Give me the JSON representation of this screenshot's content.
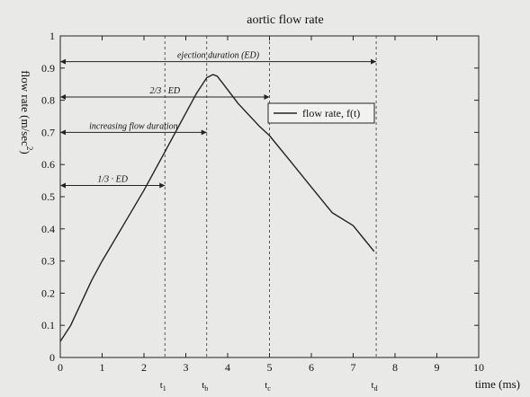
{
  "chart_data": {
    "type": "line",
    "title": "aortic flow rate",
    "xlabel": "time (ms)",
    "ylabel": "flow rate (m/sec",
    "ylabel_superscript": "2",
    "ylabel_close": ")",
    "xlim": [
      0,
      10
    ],
    "ylim": [
      0,
      1
    ],
    "x_ticks": [
      0,
      1,
      2,
      3,
      4,
      5,
      6,
      7,
      8,
      9,
      10
    ],
    "y_ticks": [
      0,
      0.1,
      0.2,
      0.3,
      0.4,
      0.5,
      0.6,
      0.7,
      0.8,
      0.9,
      1
    ],
    "x_tick_labels": [
      "0",
      "1",
      "2",
      "3",
      "4",
      "5",
      "6",
      "7",
      "8",
      "9",
      "10"
    ],
    "y_tick_labels": [
      "0",
      "0.1",
      "0.2",
      "0.3",
      "0.4",
      "0.5",
      "0.6",
      "0.7",
      "0.8",
      "0.9",
      "1"
    ],
    "grid": false,
    "legend_position": "right, inside plot",
    "series": [
      {
        "name": "flow rate, f(t)",
        "color": "#222222",
        "x": [
          0,
          0.25,
          0.5,
          0.75,
          1.0,
          1.5,
          2.0,
          2.5,
          3.0,
          3.25,
          3.5,
          3.65,
          3.75,
          3.9,
          4.25,
          4.75,
          5.0,
          5.5,
          6.0,
          6.5,
          7.0,
          7.25,
          7.5
        ],
        "y": [
          0.05,
          0.1,
          0.17,
          0.24,
          0.3,
          0.41,
          0.52,
          0.64,
          0.76,
          0.82,
          0.87,
          0.88,
          0.875,
          0.85,
          0.79,
          0.72,
          0.69,
          0.61,
          0.53,
          0.45,
          0.41,
          0.37,
          0.33
        ]
      }
    ],
    "vertical_markers": [
      {
        "x": 2.5,
        "label": "t",
        "sub": "1"
      },
      {
        "x": 3.5,
        "label": "t",
        "sub": "b"
      },
      {
        "x": 5.0,
        "label": "t",
        "sub": "c"
      },
      {
        "x": 7.55,
        "label": "t",
        "sub": "d"
      }
    ],
    "annotations": [
      {
        "text": "ejection duration (ED)",
        "y": 0.92,
        "x_start": 0,
        "x_end": 7.55
      },
      {
        "text": "2/3 · ED",
        "y": 0.81,
        "x_start": 0,
        "x_end": 5.0
      },
      {
        "text": "increasing flow duration",
        "y": 0.7,
        "x_start": 0,
        "x_end": 3.5
      },
      {
        "text": "1/3 · ED",
        "y": 0.535,
        "x_start": 0,
        "x_end": 2.5
      }
    ]
  }
}
